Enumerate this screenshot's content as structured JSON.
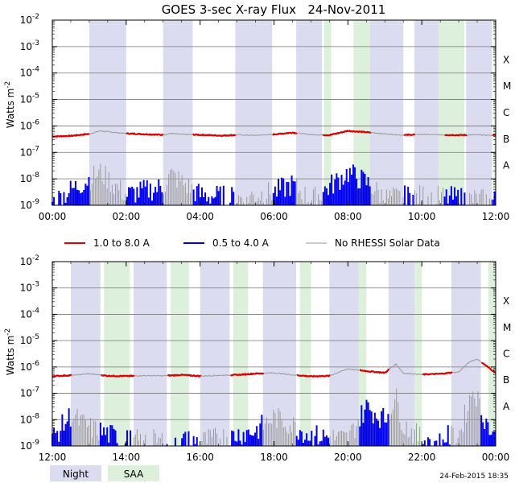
{
  "title": "GOES 3-sec X-ray Flux   24-Nov-2011",
  "ylabel": "Watts m",
  "ylabel_sup": "-2",
  "y_ticks": [
    {
      "base": "10",
      "exp": "-2"
    },
    {
      "base": "10",
      "exp": "-3"
    },
    {
      "base": "10",
      "exp": "-4"
    },
    {
      "base": "10",
      "exp": "-5"
    },
    {
      "base": "10",
      "exp": "-6"
    },
    {
      "base": "10",
      "exp": "-7"
    },
    {
      "base": "10",
      "exp": "-8"
    },
    {
      "base": "10",
      "exp": "-9"
    }
  ],
  "flare_classes": [
    "X",
    "M",
    "C",
    "B",
    "A"
  ],
  "legend": {
    "long": "1.0 to 8.0 A",
    "short": "0.5 to 4.0 A",
    "nodata": "No RHESSI Solar Data",
    "night": "Night",
    "saa": "SAA"
  },
  "colors": {
    "long": "#dd0000",
    "short": "#0000ee",
    "nodata": "#999999",
    "night": "#dcdcf0",
    "saa": "#dcf0dc",
    "grid": "#777777"
  },
  "timestamp": "24-Feb-2015 18:35",
  "chart_data": [
    {
      "type": "line",
      "title": "GOES 3-sec X-ray Flux   24-Nov-2011",
      "ylabel": "Watts m-2",
      "yscale": "log",
      "ylim": [
        1e-09,
        0.01
      ],
      "xlim_hours": [
        0,
        12
      ],
      "x_tick_labels": [
        "00:00",
        "02:00",
        "04:00",
        "06:00",
        "08:00",
        "10:00",
        "12:00"
      ],
      "night_intervals_hours": [
        [
          1.0,
          2.0
        ],
        [
          3.0,
          3.8
        ],
        [
          4.95,
          5.95
        ],
        [
          6.6,
          7.3
        ],
        [
          8.6,
          9.5
        ],
        [
          9.8,
          10.6
        ],
        [
          11.2,
          11.9
        ]
      ],
      "saa_intervals_hours": [
        [
          7.35,
          7.55
        ],
        [
          8.15,
          8.6
        ],
        [
          10.45,
          11.15
        ],
        [
          11.95,
          12.0
        ]
      ],
      "series": [
        {
          "name": "1.0 to 8.0 A",
          "x": [
            0.0,
            0.5,
            1.0,
            1.3,
            1.6,
            2.0,
            2.6,
            3.0,
            3.2,
            3.5,
            4.0,
            4.6,
            5.0,
            5.5,
            6.0,
            6.5,
            7.0,
            7.5,
            8.0,
            8.5,
            9.0,
            9.5,
            10.0,
            10.5,
            11.0,
            11.5,
            12.0
          ],
          "values": [
            4e-07,
            4.2e-07,
            5e-07,
            6.5e-07,
            5.8e-07,
            5.2e-07,
            4.8e-07,
            4.6e-07,
            5.2e-07,
            4.8e-07,
            4.6e-07,
            4.3e-07,
            4.6e-07,
            4.4e-07,
            4.8e-07,
            5.6e-07,
            4.7e-07,
            4.5e-07,
            6.5e-07,
            5.8e-07,
            5e-07,
            4.5e-07,
            4.8e-07,
            4.6e-07,
            4.5e-07,
            4.6e-07,
            4.4e-07
          ]
        },
        {
          "name": "0.5 to 4.0 A",
          "x": [
            0.0,
            0.5,
            1.0,
            1.3,
            1.6,
            2.0,
            3.0,
            3.2,
            4.0,
            5.0,
            6.0,
            6.5,
            7.0,
            8.0,
            8.5,
            9.0,
            10.0,
            11.0,
            12.0
          ],
          "values": [
            1e-09,
            3e-09,
            8e-09,
            1.4e-08,
            6e-09,
            2e-09,
            4e-09,
            1.2e-08,
            2e-09,
            1.5e-09,
            2.5e-09,
            5e-09,
            1.2e-09,
            1.4e-08,
            6e-09,
            1.5e-09,
            1.8e-09,
            1.5e-09,
            1.2e-09
          ]
        }
      ]
    },
    {
      "type": "line",
      "ylabel": "Watts m-2",
      "yscale": "log",
      "ylim": [
        1e-09,
        0.01
      ],
      "xlim_hours": [
        12,
        24
      ],
      "x_tick_labels": [
        "12:00",
        "14:00",
        "16:00",
        "18:00",
        "20:00",
        "22:00",
        "00:00"
      ],
      "night_intervals_hours": [
        [
          12.5,
          13.3
        ],
        [
          14.2,
          15.1
        ],
        [
          16.0,
          16.8
        ],
        [
          17.7,
          18.6
        ],
        [
          19.5,
          20.3
        ],
        [
          21.1,
          22.0
        ],
        [
          22.8,
          23.6
        ]
      ],
      "saa_intervals_hours": [
        [
          13.4,
          14.1
        ],
        [
          15.2,
          15.7
        ],
        [
          16.9,
          17.3
        ],
        [
          18.7,
          19.0
        ],
        [
          20.3,
          20.5
        ],
        [
          21.8,
          22.0
        ],
        [
          23.8,
          24.0
        ]
      ],
      "series": [
        {
          "name": "1.0 to 8.0 A",
          "x": [
            12.0,
            12.5,
            13.0,
            13.5,
            14.0,
            14.5,
            15.0,
            15.5,
            16.0,
            16.5,
            17.0,
            17.5,
            18.0,
            18.5,
            19.0,
            19.5,
            20.0,
            20.5,
            21.0,
            21.3,
            21.5,
            22.0,
            22.5,
            23.0,
            23.3,
            23.5,
            24.0
          ],
          "values": [
            4.5e-07,
            4.8e-07,
            5.5e-07,
            4.6e-07,
            4.5e-07,
            4.7e-07,
            4.6e-07,
            5e-07,
            4.5e-07,
            4.8e-07,
            5e-07,
            5.6e-07,
            6e-07,
            5e-07,
            4.4e-07,
            4.6e-07,
            8.5e-07,
            7e-07,
            6e-07,
            1.3e-06,
            5.8e-07,
            5.2e-07,
            5.5e-07,
            6.5e-07,
            1.6e-06,
            2e-06,
            6e-07
          ]
        },
        {
          "name": "0.5 to 4.0 A",
          "x": [
            12.0,
            12.5,
            13.0,
            14.0,
            16.0,
            17.5,
            18.0,
            18.5,
            19.0,
            20.0,
            20.5,
            21.0,
            21.3,
            21.5,
            22.0,
            23.0,
            23.4,
            23.6,
            24.0
          ],
          "values": [
            1.5e-09,
            1.2e-08,
            4e-09,
            1.3e-09,
            1.2e-09,
            3e-09,
            1e-08,
            5e-09,
            2e-09,
            1.5e-09,
            2.5e-08,
            8e-09,
            6e-08,
            5e-09,
            1.5e-09,
            2e-09,
            1.4e-07,
            2e-08,
            1.2e-09
          ]
        }
      ]
    }
  ]
}
